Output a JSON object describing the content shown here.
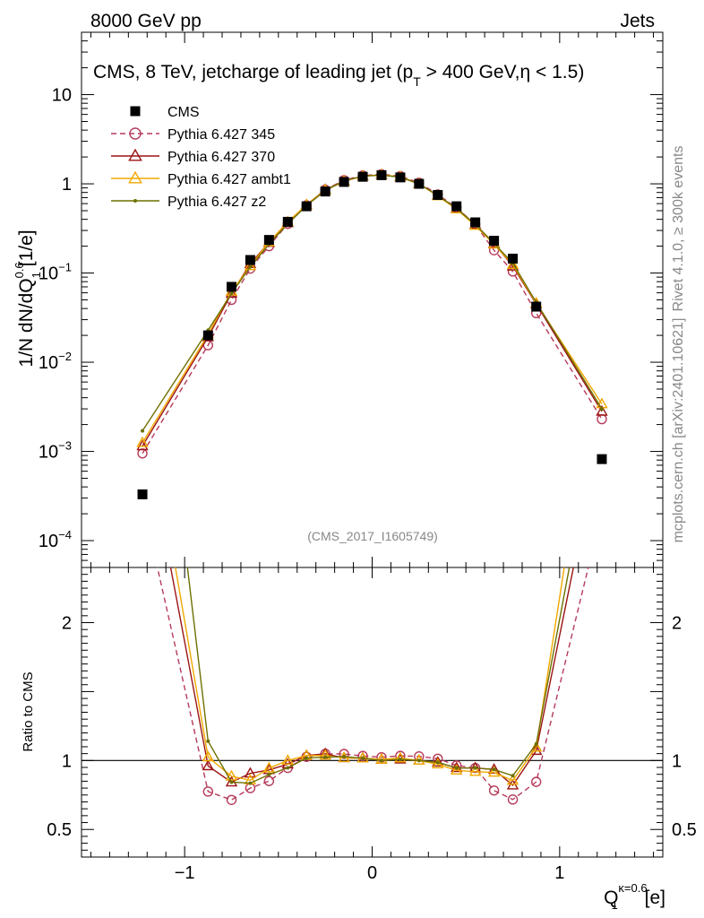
{
  "header": {
    "left": "8000 GeV pp",
    "right": "Jets"
  },
  "side": {
    "rivet": "Rivet 4.1.0, ≥ 300k events",
    "mcplots": "mcplots.cern.ch [arXiv:2401.10621]"
  },
  "chart_data": {
    "type": "line",
    "title": "CMS, 8 TeV, jetcharge of leading jet (p",
    "title_sub": "T",
    "title_tail": " > 400 GeV,η < 1.5)",
    "watermark": "(CMS_2017_I1605749)",
    "ylabel_main": "1/N dN/dQ",
    "ylabel_sup": "0.6",
    "ylabel_sub": "1",
    "ylabel_unit": " [1/e]",
    "ylabel_ratio": "Ratio to CMS",
    "xlabel": "Q",
    "xlabel_sup": "κ=0.6",
    "xlabel_sub": "1",
    "xlabel_unit": " [e]",
    "xlim": [
      -1.55,
      1.55
    ],
    "ylim_main": [
      5e-05,
      50
    ],
    "ylim_ratio": [
      0.3,
      2.4
    ],
    "x_ticks": [
      {
        "value": -1,
        "label": "−1"
      },
      {
        "value": 0,
        "label": "0"
      },
      {
        "value": 1,
        "label": "1"
      }
    ],
    "y_ticks_main": [
      {
        "value": 10,
        "base": "10",
        "exp": ""
      },
      {
        "value": 1,
        "base": "1",
        "exp": ""
      },
      {
        "value": 0.1,
        "base": "10",
        "exp": "−1"
      },
      {
        "value": 0.01,
        "base": "10",
        "exp": "−2"
      },
      {
        "value": 0.001,
        "base": "10",
        "exp": "−3"
      },
      {
        "value": 0.0001,
        "base": "10",
        "exp": "−4"
      }
    ],
    "y_ticks_ratio": [
      {
        "value": 2,
        "label": "2"
      },
      {
        "value": 1,
        "label": "1"
      },
      {
        "value": 0.5,
        "label": "0.5"
      }
    ],
    "x": [
      -1.225,
      -0.875,
      -0.75,
      -0.65,
      -0.55,
      -0.45,
      -0.35,
      -0.25,
      -0.15,
      -0.05,
      0.05,
      0.15,
      0.25,
      0.35,
      0.45,
      0.55,
      0.65,
      0.75,
      0.875,
      1.225
    ],
    "series": [
      {
        "name": "CMS",
        "color": "#000000",
        "marker": "square",
        "dash": "",
        "values": [
          0.00033,
          0.02,
          0.07,
          0.14,
          0.235,
          0.375,
          0.56,
          0.82,
          1.05,
          1.2,
          1.25,
          1.18,
          1.0,
          0.75,
          0.56,
          0.37,
          0.23,
          0.145,
          0.042,
          0.00082
        ]
      },
      {
        "name": "Pythia 6.427 345",
        "color": "#b53a5a",
        "marker": "circle",
        "dash": "6,4",
        "values": [
          0.00095,
          0.0155,
          0.05,
          0.112,
          0.2,
          0.355,
          0.575,
          0.86,
          1.1,
          1.24,
          1.28,
          1.22,
          1.03,
          0.76,
          0.54,
          0.35,
          0.18,
          0.104,
          0.0355,
          0.0023
        ]
      },
      {
        "name": "Pythia 6.427 370",
        "color": "#9b1414",
        "marker": "triangle",
        "dash": "",
        "values": [
          0.00115,
          0.0192,
          0.059,
          0.127,
          0.219,
          0.365,
          0.58,
          0.86,
          1.07,
          1.22,
          1.26,
          1.19,
          1.0,
          0.74,
          0.53,
          0.35,
          0.215,
          0.119,
          0.045,
          0.0028
        ]
      },
      {
        "name": "Pythia 6.427 ambt1",
        "color": "#f0a800",
        "marker": "triangle",
        "dash": "",
        "values": [
          0.00125,
          0.0205,
          0.062,
          0.12,
          0.222,
          0.375,
          0.58,
          0.85,
          1.07,
          1.22,
          1.26,
          1.2,
          1.0,
          0.73,
          0.52,
          0.34,
          0.21,
          0.124,
          0.046,
          0.0034
        ]
      },
      {
        "name": "Pythia 6.427 z2",
        "color": "#6e7000",
        "marker": "dot",
        "dash": "",
        "values": [
          0.0017,
          0.0228,
          0.059,
          0.117,
          0.211,
          0.355,
          0.57,
          0.84,
          1.08,
          1.22,
          1.25,
          1.19,
          1.0,
          0.74,
          0.53,
          0.35,
          0.215,
          0.129,
          0.047,
          0.003
        ]
      }
    ]
  }
}
